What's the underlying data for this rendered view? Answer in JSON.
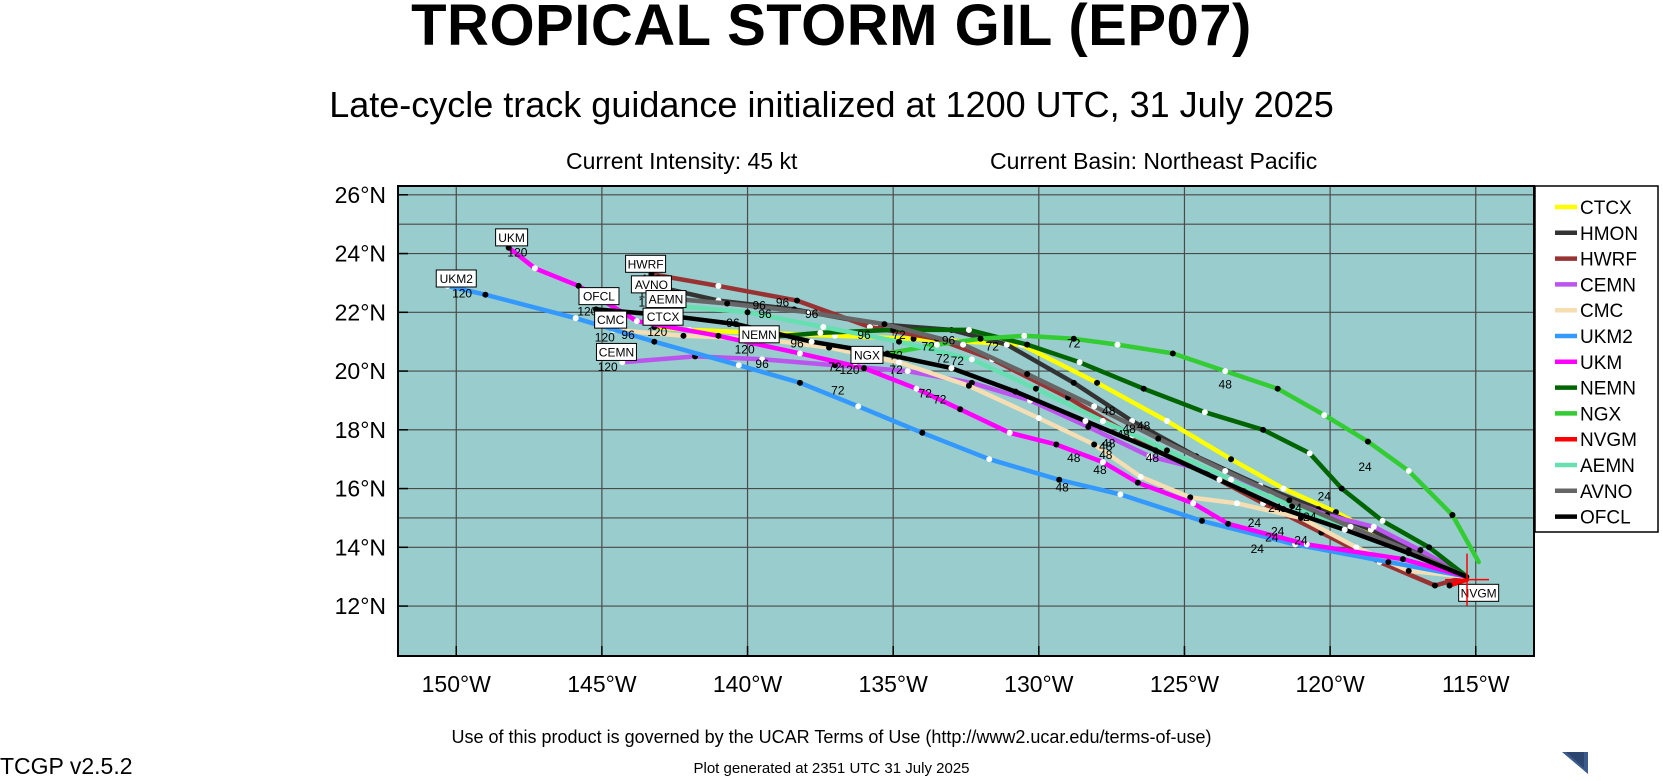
{
  "header": {
    "title": "TROPICAL STORM GIL (EP07)",
    "subtitle": "Late-cycle track guidance initialized at 1200 UTC, 31 July 2025",
    "intensity": "Current Intensity: 45 kt",
    "basin": "Current Basin: Northeast Pacific"
  },
  "footer": {
    "terms": "Use of this product is governed by the UCAR Terms of Use (http://www2.ucar.edu/terms-of-use)",
    "generated": "Plot generated at 2351 UTC   31 July 2025",
    "version": "TCGP v2.5.2",
    "logo": "NCAR"
  },
  "chart_data": {
    "type": "line",
    "x_axis": {
      "label": "Longitude",
      "range": [
        -152,
        -113
      ],
      "ticks": [
        -150,
        -145,
        -140,
        -135,
        -130,
        -125,
        -120,
        -115
      ],
      "tick_labels": [
        "150°W",
        "145°W",
        "140°W",
        "135°W",
        "130°W",
        "125°W",
        "120°W",
        "115°W"
      ]
    },
    "y_axis": {
      "label": "Latitude",
      "range": [
        10.3,
        26.3
      ],
      "ticks": [
        12,
        14,
        16,
        18,
        20,
        22,
        24,
        26
      ],
      "tick_labels": [
        "12°N",
        "14°N",
        "16°N",
        "18°N",
        "20°N",
        "22°N",
        "24°N",
        "26°N"
      ]
    },
    "grid": true,
    "colors": {
      "ocean": "#99cccc",
      "grid": "#4a4a4a"
    },
    "legend_position": "right",
    "series": [
      {
        "name": "CTCX",
        "color": "#ffff00",
        "points": [
          [
            -115.3,
            13.0
          ],
          [
            -116.7,
            13.7
          ],
          [
            -118.1,
            14.3
          ],
          [
            -119.8,
            15.2
          ],
          [
            -121.6,
            16.0
          ],
          [
            -123.4,
            17.0
          ],
          [
            -125.6,
            18.3
          ],
          [
            -128.0,
            19.6
          ],
          [
            -130.6,
            20.9
          ],
          [
            -134.3,
            21.1
          ],
          [
            -137.0,
            21.2
          ],
          [
            -139.5,
            21.3
          ],
          [
            -142.0,
            21.4
          ],
          [
            -143.2,
            21.5
          ]
        ],
        "tau_labels": []
      },
      {
        "name": "HMON",
        "color": "#333333",
        "points": [
          [
            -115.3,
            13.0
          ],
          [
            -116.9,
            13.8
          ],
          [
            -118.6,
            14.6
          ],
          [
            -120.4,
            15.3
          ],
          [
            -122.4,
            16.1
          ],
          [
            -124.6,
            17.1
          ],
          [
            -126.8,
            18.3
          ],
          [
            -128.8,
            19.6
          ],
          [
            -131.1,
            20.9
          ],
          [
            -133.0,
            21.4
          ],
          [
            -135.6,
            21.6
          ],
          [
            -138.4,
            22.1
          ],
          [
            -141.0,
            22.4
          ],
          [
            -143.2,
            22.9
          ]
        ],
        "tau_labels": []
      },
      {
        "name": "HWRF",
        "color": "#993333",
        "points": [
          [
            -115.3,
            13.0
          ],
          [
            -116.4,
            12.7
          ],
          [
            -118.3,
            13.5
          ],
          [
            -120.3,
            14.5
          ],
          [
            -122.3,
            15.5
          ],
          [
            -124.4,
            16.6
          ],
          [
            -126.8,
            17.8
          ],
          [
            -129.0,
            19.1
          ],
          [
            -131.6,
            20.4
          ],
          [
            -133.5,
            21.1
          ],
          [
            -135.8,
            21.5
          ],
          [
            -138.3,
            22.4
          ],
          [
            -141.0,
            22.9
          ],
          [
            -143.3,
            23.3
          ]
        ],
        "tau_labels": []
      },
      {
        "name": "CEMN",
        "color": "#bb55ee",
        "points": [
          [
            -115.3,
            13.0
          ],
          [
            -116.9,
            13.9
          ],
          [
            -118.5,
            14.7
          ],
          [
            -120.1,
            15.1
          ],
          [
            -122.0,
            15.8
          ],
          [
            -124.2,
            16.6
          ],
          [
            -126.2,
            17.1
          ],
          [
            -128.3,
            18.1
          ],
          [
            -130.3,
            19.0
          ],
          [
            -132.3,
            19.6
          ],
          [
            -134.5,
            20.0
          ],
          [
            -137.0,
            20.2
          ],
          [
            -139.5,
            20.4
          ],
          [
            -141.8,
            20.5
          ],
          [
            -144.3,
            20.3
          ]
        ],
        "tau_labels": []
      },
      {
        "name": "CMC",
        "color": "#f5deb3",
        "points": [
          [
            -115.3,
            13.0
          ],
          [
            -117.3,
            13.2
          ],
          [
            -119.1,
            14.0
          ],
          [
            -121.0,
            15.0
          ],
          [
            -123.2,
            15.5
          ],
          [
            -124.8,
            15.7
          ],
          [
            -126.5,
            16.4
          ],
          [
            -128.1,
            17.5
          ],
          [
            -130.0,
            18.4
          ],
          [
            -132.4,
            19.5
          ],
          [
            -134.8,
            20.3
          ],
          [
            -137.2,
            20.8
          ],
          [
            -139.6,
            21.1
          ],
          [
            -142.2,
            21.2
          ],
          [
            -144.6,
            21.4
          ]
        ],
        "tau_labels": []
      },
      {
        "name": "UKM2",
        "color": "#3399ff",
        "points": [
          [
            -115.3,
            13.0
          ],
          [
            -118.0,
            13.5
          ],
          [
            -121.2,
            14.1
          ],
          [
            -124.4,
            14.9
          ],
          [
            -127.2,
            15.8
          ],
          [
            -129.3,
            16.3
          ],
          [
            -131.7,
            17.0
          ],
          [
            -134.0,
            17.9
          ],
          [
            -136.2,
            18.8
          ],
          [
            -138.2,
            19.6
          ],
          [
            -140.3,
            20.2
          ],
          [
            -143.2,
            21.0
          ],
          [
            -145.9,
            21.8
          ],
          [
            -149.0,
            22.6
          ],
          [
            -150.3,
            22.9
          ]
        ],
        "tau_labels": []
      },
      {
        "name": "UKM",
        "color": "#ff00ff",
        "points": [
          [
            -115.3,
            13.0
          ],
          [
            -117.5,
            13.6
          ],
          [
            -120.8,
            14.1
          ],
          [
            -123.5,
            14.8
          ],
          [
            -124.7,
            15.5
          ],
          [
            -126.6,
            16.2
          ],
          [
            -127.8,
            16.9
          ],
          [
            -129.4,
            17.5
          ],
          [
            -131.0,
            17.9
          ],
          [
            -132.7,
            18.7
          ],
          [
            -134.2,
            19.4
          ],
          [
            -136.0,
            20.1
          ],
          [
            -138.2,
            20.6
          ],
          [
            -141.0,
            21.2
          ],
          [
            -143.8,
            21.7
          ],
          [
            -145.8,
            22.9
          ],
          [
            -147.3,
            23.5
          ],
          [
            -148.2,
            24.2
          ]
        ],
        "tau_labels": []
      },
      {
        "name": "NEMN",
        "color": "#006400",
        "points": [
          [
            -115.3,
            13.0
          ],
          [
            -116.6,
            14.0
          ],
          [
            -118.2,
            14.9
          ],
          [
            -119.6,
            16.0
          ],
          [
            -120.7,
            17.2
          ],
          [
            -122.3,
            18.0
          ],
          [
            -124.3,
            18.6
          ],
          [
            -126.4,
            19.4
          ],
          [
            -128.6,
            20.3
          ],
          [
            -130.4,
            20.9
          ],
          [
            -132.4,
            21.4
          ],
          [
            -135.0,
            21.4
          ],
          [
            -137.5,
            21.3
          ],
          [
            -140.0,
            21.1
          ]
        ],
        "tau_labels": []
      },
      {
        "name": "NGX",
        "color": "#33cc33",
        "points": [
          [
            -114.9,
            13.5
          ],
          [
            -115.8,
            15.1
          ],
          [
            -117.3,
            16.6
          ],
          [
            -118.7,
            17.6
          ],
          [
            -120.2,
            18.5
          ],
          [
            -121.8,
            19.4
          ],
          [
            -123.6,
            20.0
          ],
          [
            -125.4,
            20.6
          ],
          [
            -127.3,
            20.9
          ],
          [
            -128.8,
            21.1
          ],
          [
            -130.5,
            21.2
          ],
          [
            -132.0,
            21.1
          ],
          [
            -133.5,
            20.9
          ],
          [
            -135.2,
            20.6
          ],
          [
            -136.3,
            20.3
          ]
        ],
        "tau_labels": []
      },
      {
        "name": "NVGM",
        "color": "#ff0000",
        "points": [
          [
            -115.3,
            12.9
          ],
          [
            -115.9,
            12.7
          ]
        ],
        "tau_labels": []
      },
      {
        "name": "AEMN",
        "color": "#66e0b0",
        "points": [
          [
            -115.3,
            13.0
          ],
          [
            -117.2,
            13.8
          ],
          [
            -119.2,
            14.6
          ],
          [
            -121.3,
            15.4
          ],
          [
            -123.4,
            16.3
          ],
          [
            -125.6,
            17.3
          ],
          [
            -127.8,
            18.3
          ],
          [
            -130.1,
            19.4
          ],
          [
            -132.3,
            20.4
          ],
          [
            -134.8,
            21.0
          ],
          [
            -137.4,
            21.5
          ],
          [
            -140.0,
            22.0
          ],
          [
            -142.3,
            22.2
          ]
        ],
        "tau_labels": []
      },
      {
        "name": "AVNO",
        "color": "#666666",
        "points": [
          [
            -115.3,
            13.0
          ],
          [
            -117.3,
            13.9
          ],
          [
            -119.3,
            14.7
          ],
          [
            -121.4,
            15.6
          ],
          [
            -123.6,
            16.6
          ],
          [
            -125.9,
            17.7
          ],
          [
            -128.1,
            18.8
          ],
          [
            -130.4,
            19.9
          ],
          [
            -132.6,
            20.9
          ],
          [
            -135.3,
            21.6
          ],
          [
            -137.9,
            22.0
          ],
          [
            -140.7,
            22.3
          ],
          [
            -143.0,
            22.5
          ]
        ],
        "tau_labels": []
      },
      {
        "name": "OFCL",
        "color": "#000000",
        "points": [
          [
            -115.3,
            13.0
          ],
          [
            -117.3,
            13.8
          ],
          [
            -119.5,
            14.6
          ],
          [
            -121.6,
            15.3
          ],
          [
            -123.8,
            16.3
          ],
          [
            -126.0,
            17.3
          ],
          [
            -128.4,
            18.3
          ],
          [
            -130.8,
            19.3
          ],
          [
            -133.0,
            20.1
          ],
          [
            -135.4,
            20.6
          ],
          [
            -137.8,
            21.0
          ],
          [
            -140.4,
            21.6
          ],
          [
            -142.8,
            21.9
          ],
          [
            -145.2,
            22.1
          ]
        ],
        "tau_labels": []
      }
    ],
    "end_labels": [
      {
        "text": "UKM",
        "lon": -148.1,
        "lat": 24.5
      },
      {
        "text": "UKM2",
        "lon": -150.0,
        "lat": 23.1
      },
      {
        "text": "HWRF",
        "lon": -143.5,
        "lat": 23.6
      },
      {
        "text": "AVNO",
        "lon": -143.3,
        "lat": 22.9
      },
      {
        "text": "AEMN",
        "lon": -142.8,
        "lat": 22.4
      },
      {
        "text": "OFCL",
        "lon": -145.1,
        "lat": 22.5
      },
      {
        "text": "CMC",
        "lon": -144.7,
        "lat": 21.7
      },
      {
        "text": "CTCX",
        "lon": -142.9,
        "lat": 21.8
      },
      {
        "text": "NEMN",
        "lon": -139.6,
        "lat": 21.2
      },
      {
        "text": "CEMN",
        "lon": -144.5,
        "lat": 20.6
      },
      {
        "text": "NGX",
        "lon": -135.9,
        "lat": 20.5
      },
      {
        "text": "NVGM",
        "lon": -114.9,
        "lat": 12.4
      }
    ],
    "tau_marks": [
      {
        "text": "120",
        "lon": -149.8,
        "lat": 22.5
      },
      {
        "text": "120",
        "lon": -147.9,
        "lat": 23.9
      },
      {
        "text": "120",
        "lon": -145.5,
        "lat": 21.9
      },
      {
        "text": "120",
        "lon": -143.3,
        "lat": 23.0
      },
      {
        "text": "120",
        "lon": -143.4,
        "lat": 22.5
      },
      {
        "text": "120",
        "lon": -143.4,
        "lat": 22.2
      },
      {
        "text": "120",
        "lon": -143.1,
        "lat": 21.2
      },
      {
        "text": "120",
        "lon": -144.9,
        "lat": 21.0
      },
      {
        "text": "120",
        "lon": -144.8,
        "lat": 20.0
      },
      {
        "text": "120",
        "lon": -140.1,
        "lat": 20.6
      },
      {
        "text": "120",
        "lon": -136.5,
        "lat": 19.9
      },
      {
        "text": "96",
        "lon": -144.1,
        "lat": 21.1
      },
      {
        "text": "96",
        "lon": -140.5,
        "lat": 21.5
      },
      {
        "text": "96",
        "lon": -139.4,
        "lat": 21.8
      },
      {
        "text": "96",
        "lon": -139.6,
        "lat": 22.1
      },
      {
        "text": "96",
        "lon": -138.8,
        "lat": 22.2
      },
      {
        "text": "96",
        "lon": -137.8,
        "lat": 21.8
      },
      {
        "text": "96",
        "lon": -138.3,
        "lat": 20.8
      },
      {
        "text": "96",
        "lon": -139.5,
        "lat": 20.1
      },
      {
        "text": "96",
        "lon": -136.0,
        "lat": 21.1
      },
      {
        "text": "96",
        "lon": -133.1,
        "lat": 20.9
      },
      {
        "text": "72",
        "lon": -137.0,
        "lat": 20.0
      },
      {
        "text": "72",
        "lon": -136.9,
        "lat": 19.2
      },
      {
        "text": "72",
        "lon": -134.9,
        "lat": 20.4
      },
      {
        "text": "72",
        "lon": -134.9,
        "lat": 19.9
      },
      {
        "text": "72",
        "lon": -134.8,
        "lat": 21.1
      },
      {
        "text": "72",
        "lon": -133.8,
        "lat": 20.7
      },
      {
        "text": "72",
        "lon": -133.3,
        "lat": 20.3
      },
      {
        "text": "72",
        "lon": -132.8,
        "lat": 20.2
      },
      {
        "text": "72",
        "lon": -131.6,
        "lat": 20.7
      },
      {
        "text": "72",
        "lon": -133.9,
        "lat": 19.1
      },
      {
        "text": "72",
        "lon": -133.4,
        "lat": 18.9
      },
      {
        "text": "72",
        "lon": -128.8,
        "lat": 20.8
      },
      {
        "text": "48",
        "lon": -127.6,
        "lat": 18.5
      },
      {
        "text": "48",
        "lon": -126.9,
        "lat": 17.9
      },
      {
        "text": "48",
        "lon": -126.4,
        "lat": 18.0
      },
      {
        "text": "48",
        "lon": -127.1,
        "lat": 17.7
      },
      {
        "text": "48",
        "lon": -127.6,
        "lat": 17.4
      },
      {
        "text": "48",
        "lon": -127.7,
        "lat": 17.3
      },
      {
        "text": "48",
        "lon": -127.7,
        "lat": 17.0
      },
      {
        "text": "48",
        "lon": -126.1,
        "lat": 16.9
      },
      {
        "text": "48",
        "lon": -128.8,
        "lat": 16.9
      },
      {
        "text": "48",
        "lon": -127.9,
        "lat": 16.5
      },
      {
        "text": "48",
        "lon": -129.2,
        "lat": 15.9
      },
      {
        "text": "48",
        "lon": -123.6,
        "lat": 19.4
      },
      {
        "text": "24",
        "lon": -120.2,
        "lat": 15.6
      },
      {
        "text": "24",
        "lon": -121.9,
        "lat": 15.2
      },
      {
        "text": "24",
        "lon": -121.2,
        "lat": 15.2
      },
      {
        "text": "24",
        "lon": -120.7,
        "lat": 14.9
      },
      {
        "text": "24",
        "lon": -122.6,
        "lat": 14.7
      },
      {
        "text": "24",
        "lon": -121.8,
        "lat": 14.4
      },
      {
        "text": "24",
        "lon": -121.0,
        "lat": 14.1
      },
      {
        "text": "24",
        "lon": -122.0,
        "lat": 14.2
      },
      {
        "text": "24",
        "lon": -122.5,
        "lat": 13.8
      },
      {
        "text": "24",
        "lon": -118.8,
        "lat": 16.6
      }
    ]
  }
}
